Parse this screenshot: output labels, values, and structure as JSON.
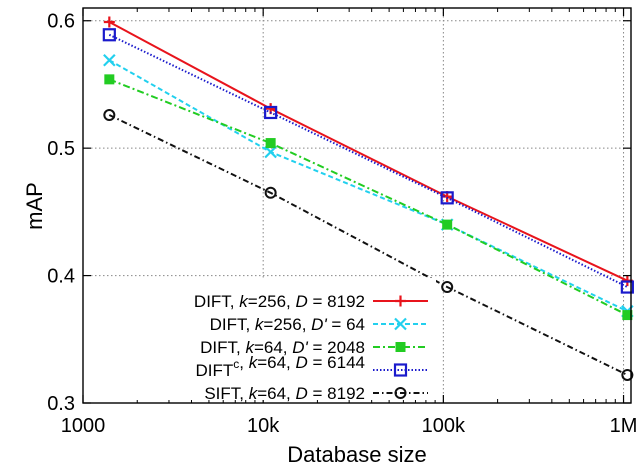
{
  "chart_data": {
    "type": "line",
    "xscale": "log",
    "xlabel": "Database size",
    "ylabel": "mAP",
    "xlim": [
      1000,
      1100000
    ],
    "ylim": [
      0.3,
      0.61
    ],
    "x_ticks": [
      {
        "value": 1000,
        "label": "1000"
      },
      {
        "value": 10000,
        "label": "10k"
      },
      {
        "value": 100000,
        "label": "100k"
      },
      {
        "value": 1000000,
        "label": "1M"
      }
    ],
    "y_ticks": [
      {
        "value": 0.3,
        "label": "0.3"
      },
      {
        "value": 0.4,
        "label": "0.4"
      },
      {
        "value": 0.5,
        "label": "0.5"
      },
      {
        "value": 0.6,
        "label": "0.6"
      }
    ],
    "grid": true,
    "legend_position": "bottom-left",
    "x": [
      1400,
      11000,
      105000,
      1050000
    ],
    "series": [
      {
        "name": "DIFT, k=256, D = 8192",
        "legend_parts": [
          [
            "DIFT, ",
            "n"
          ],
          [
            "k",
            "i"
          ],
          [
            "=256, ",
            "n"
          ],
          [
            "D",
            "i"
          ],
          [
            " = 8192",
            "n"
          ]
        ],
        "color": "#e8141c",
        "marker": "plus",
        "dash": "",
        "values": [
          0.599,
          0.531,
          0.462,
          0.396
        ]
      },
      {
        "name": "DIFT, k=256, D' = 64",
        "legend_parts": [
          [
            "DIFT, ",
            "n"
          ],
          [
            "k",
            "i"
          ],
          [
            "=256, ",
            "n"
          ],
          [
            "D'",
            "i"
          ],
          [
            " = 64",
            "n"
          ]
        ],
        "color": "#22d0ee",
        "marker": "x",
        "dash": "5 3",
        "values": [
          0.569,
          0.497,
          0.44,
          0.372
        ]
      },
      {
        "name": "DIFT, k=64, D' = 2048",
        "legend_parts": [
          [
            "DIFT, ",
            "n"
          ],
          [
            "k",
            "i"
          ],
          [
            "=64, ",
            "n"
          ],
          [
            "D'",
            "i"
          ],
          [
            " = 2048",
            "n"
          ]
        ],
        "color": "#22cc22",
        "marker": "filled-square",
        "dash": "7 3 2 3",
        "values": [
          0.554,
          0.504,
          0.44,
          0.369
        ]
      },
      {
        "name": "DIFTc, k=64, D = 6144",
        "legend_parts": [
          [
            "DIFT",
            "n"
          ],
          [
            "c",
            "sup"
          ],
          [
            ", ",
            "n"
          ],
          [
            "k",
            "i"
          ],
          [
            "=64, ",
            "n"
          ],
          [
            "D",
            "i"
          ],
          [
            " = 6144",
            "n"
          ]
        ],
        "color": "#1a1acc",
        "marker": "open-square",
        "dash": "1.5 2",
        "values": [
          0.589,
          0.528,
          0.461,
          0.391
        ]
      },
      {
        "name": "SIFT, k=64, D = 8192",
        "legend_parts": [
          [
            "SIFT, ",
            "n"
          ],
          [
            "k",
            "i"
          ],
          [
            "=64, ",
            "n"
          ],
          [
            "D",
            "i"
          ],
          [
            " = 8192",
            "n"
          ]
        ],
        "color": "#111111",
        "marker": "circle",
        "dash": "6 3 1.5 3",
        "values": [
          0.526,
          0.465,
          0.391,
          0.322
        ]
      }
    ]
  }
}
